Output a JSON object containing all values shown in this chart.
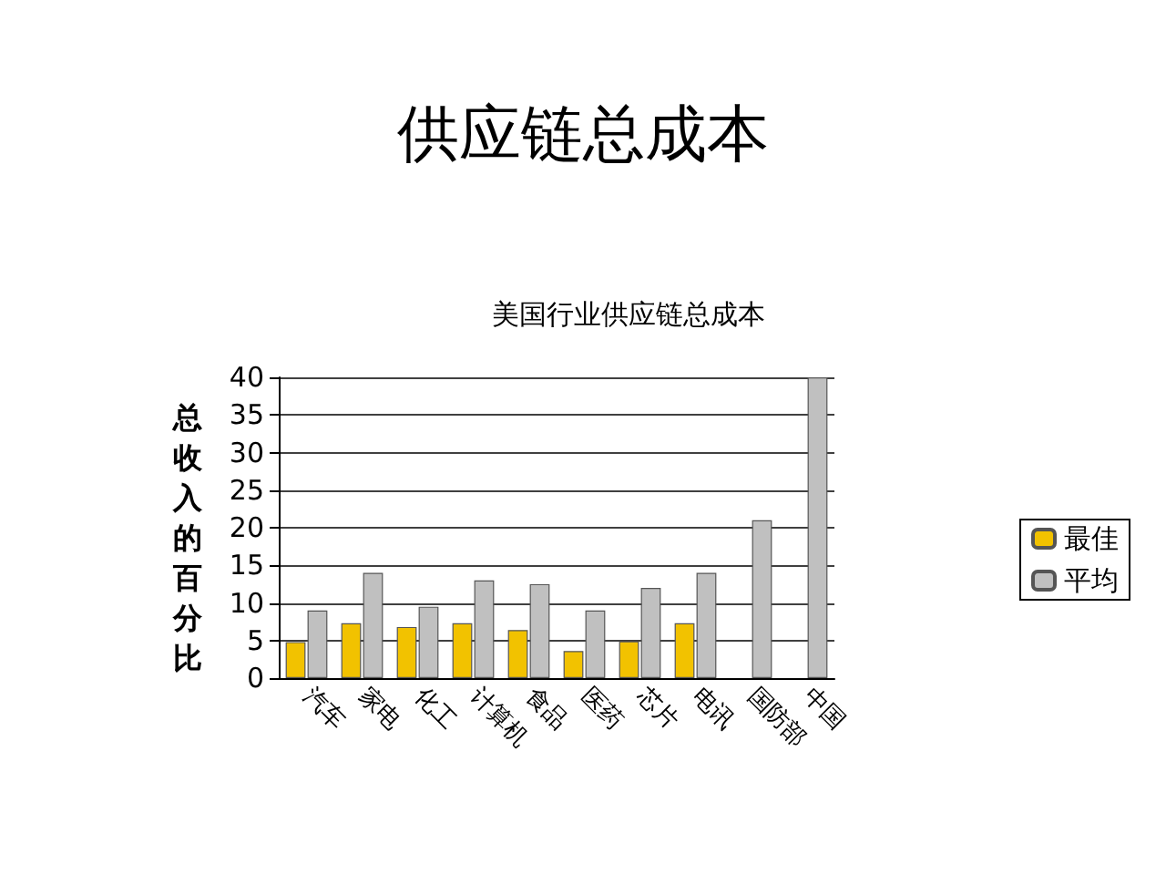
{
  "chart_data": {
    "type": "bar",
    "title": "供应链总成本",
    "subtitle": "美国行业供应链总成本",
    "ylabel": "总收入的百分比",
    "categories": [
      "汽车",
      "家电",
      "化工",
      "计算机",
      "食品",
      "医药",
      "芯片",
      "电讯",
      "国防部",
      "中国"
    ],
    "series": [
      {
        "name": "最佳",
        "color": "#f2c200",
        "values": [
          4.8,
          7.3,
          6.8,
          7.3,
          6.4,
          3.6,
          4.9,
          7.3,
          null,
          null
        ]
      },
      {
        "name": "平均",
        "color": "#c0c0c0",
        "values": [
          9,
          14,
          9.5,
          13,
          12.5,
          9,
          12,
          14,
          21,
          40
        ]
      }
    ],
    "ylim": [
      0,
      40
    ],
    "yticks": [
      0,
      5,
      10,
      15,
      20,
      25,
      30,
      35,
      40
    ],
    "grid": "y",
    "legend": "right"
  }
}
